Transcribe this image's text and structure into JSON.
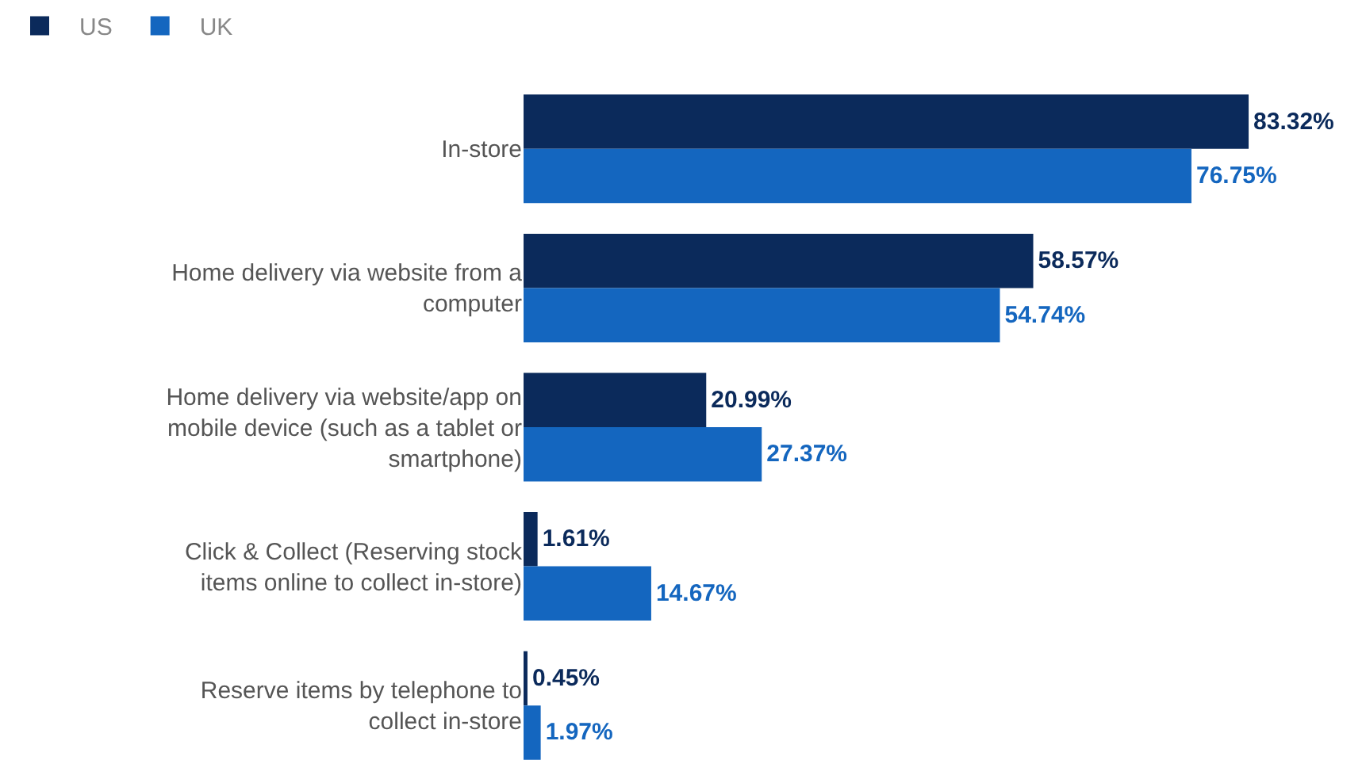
{
  "chart_data": {
    "type": "bar",
    "orientation": "horizontal",
    "legend": "top left",
    "grid": false,
    "categories": [
      "In-store",
      "Home delivery via website from a computer",
      "Home delivery via website/app on mobile device (such as a tablet or smartphone)",
      "Click & Collect (Reserving stock items online to collect in-store)",
      "Reserve items by telephone to collect in-store"
    ],
    "series": [
      {
        "name": "US",
        "color": "#0b2a5b",
        "values": [
          83.32,
          58.57,
          20.99,
          1.61,
          0.45
        ],
        "value_labels": [
          "83.32%",
          "58.57%",
          "20.99%",
          "1.61%",
          "0.45%"
        ]
      },
      {
        "name": "UK",
        "color": "#1466bf",
        "values": [
          76.75,
          54.74,
          27.37,
          14.67,
          1.97
        ],
        "value_labels": [
          "76.75%",
          "54.74%",
          "27.37%",
          "14.67%",
          "1.97%"
        ]
      }
    ]
  }
}
